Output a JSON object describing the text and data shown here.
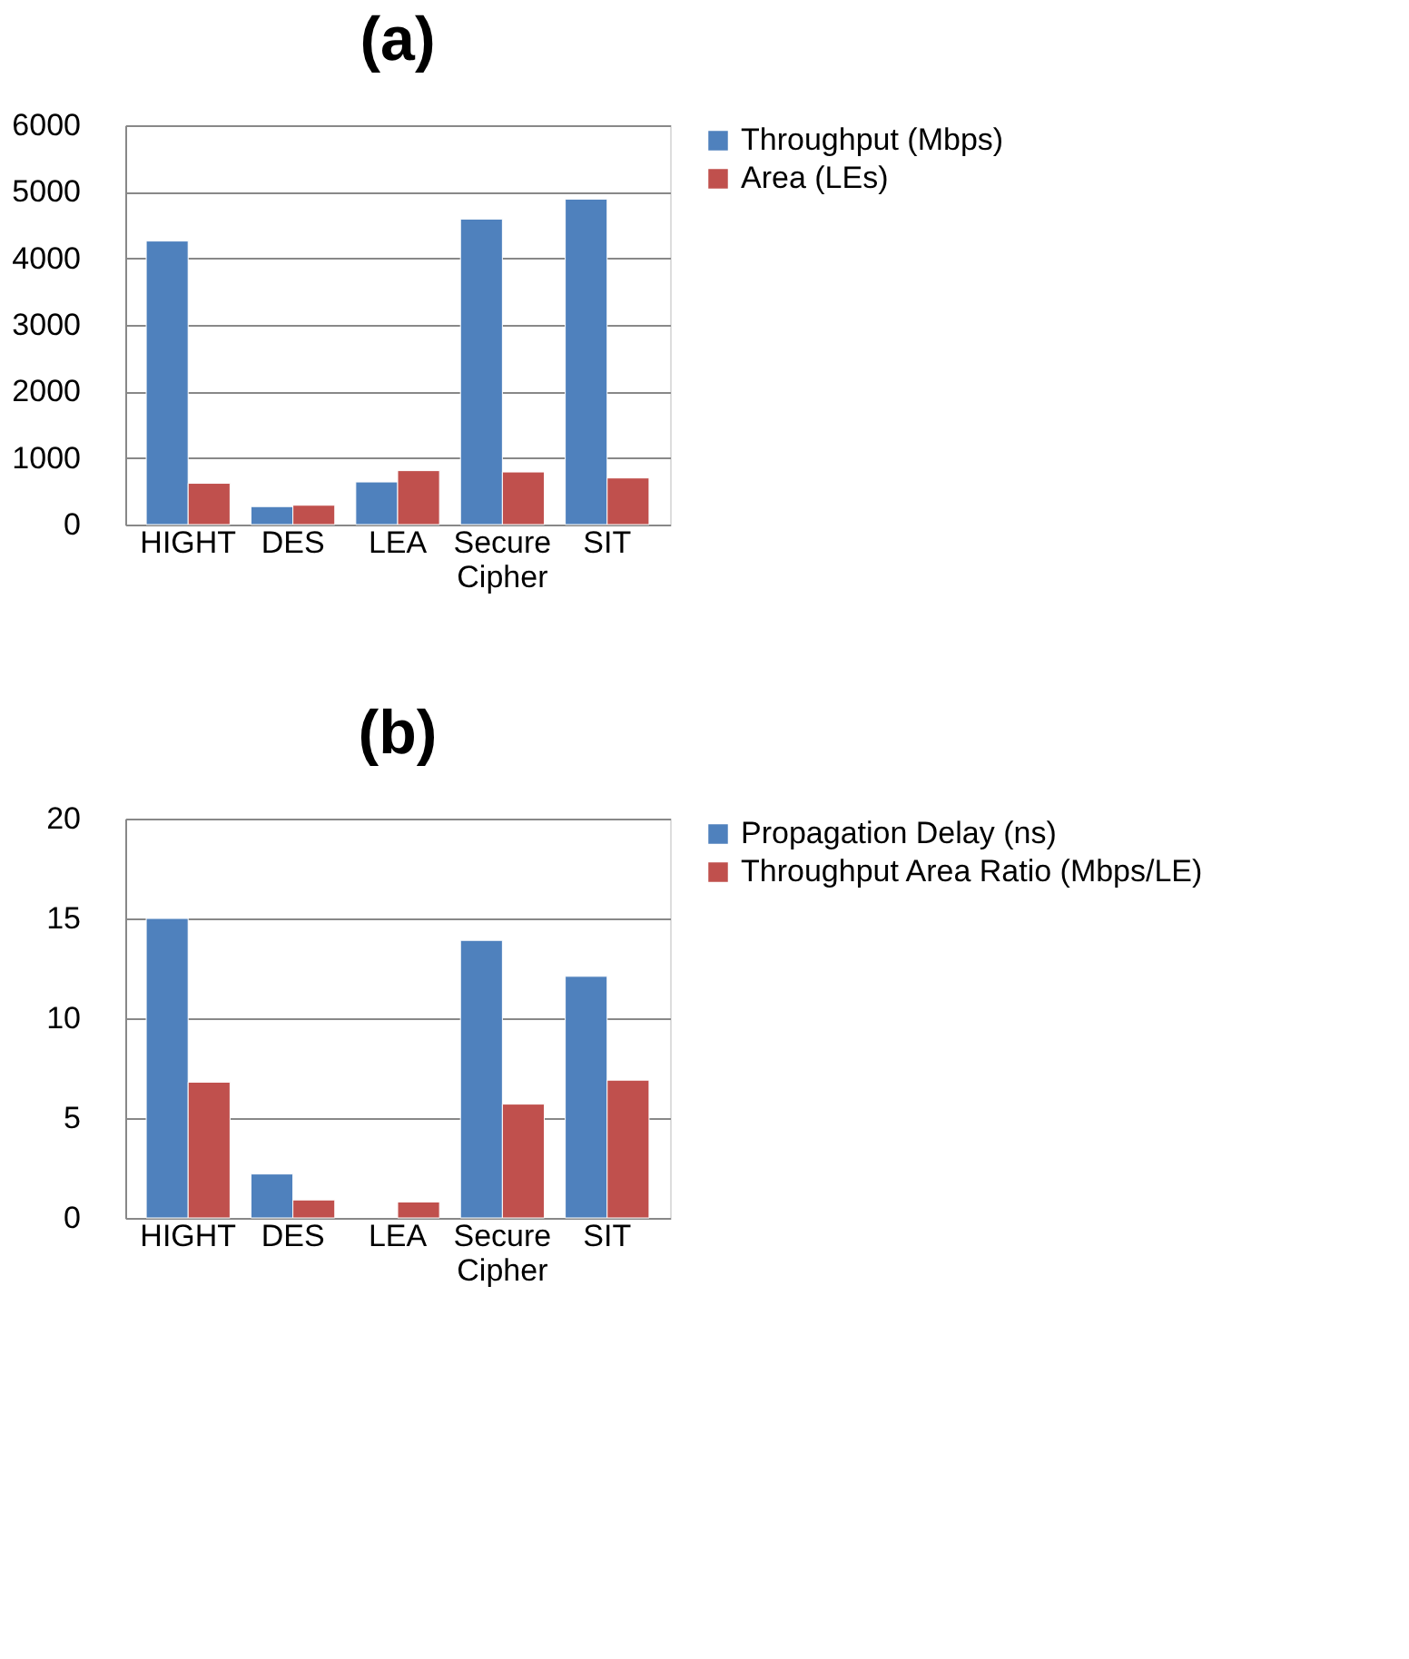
{
  "chart_data": [
    {
      "type": "bar",
      "title": "(a)",
      "categories": [
        "HIGHT",
        "DES",
        "LEA",
        "Secure Cipher",
        "SIT"
      ],
      "series": [
        {
          "name": "Throughput (Mbps)",
          "color": "#4f81bd",
          "values": [
            4260,
            270,
            640,
            4590,
            4890
          ]
        },
        {
          "name": "Area  (LEs)",
          "color": "#c0504d",
          "values": [
            620,
            290,
            810,
            790,
            700
          ]
        }
      ],
      "ylim": [
        0,
        6000
      ],
      "yticks": [
        0,
        1000,
        2000,
        3000,
        4000,
        5000,
        6000
      ],
      "grid": "y",
      "legend": "right"
    },
    {
      "type": "bar",
      "title": "(b)",
      "categories": [
        "HIGHT",
        "DES",
        "LEA",
        "Secure Cipher",
        "SIT"
      ],
      "series": [
        {
          "name": "Propagation Delay (ns)",
          "color": "#4f81bd",
          "values": [
            15.0,
            2.2,
            null,
            13.9,
            12.1
          ]
        },
        {
          "name": "Throughput Area Ratio (Mbps/LE)",
          "color": "#c0504d",
          "values": [
            6.8,
            0.9,
            0.8,
            5.7,
            6.9
          ]
        }
      ],
      "ylim": [
        0,
        20
      ],
      "yticks": [
        0,
        5,
        10,
        15,
        20
      ],
      "grid": "y",
      "legend": "right"
    }
  ]
}
